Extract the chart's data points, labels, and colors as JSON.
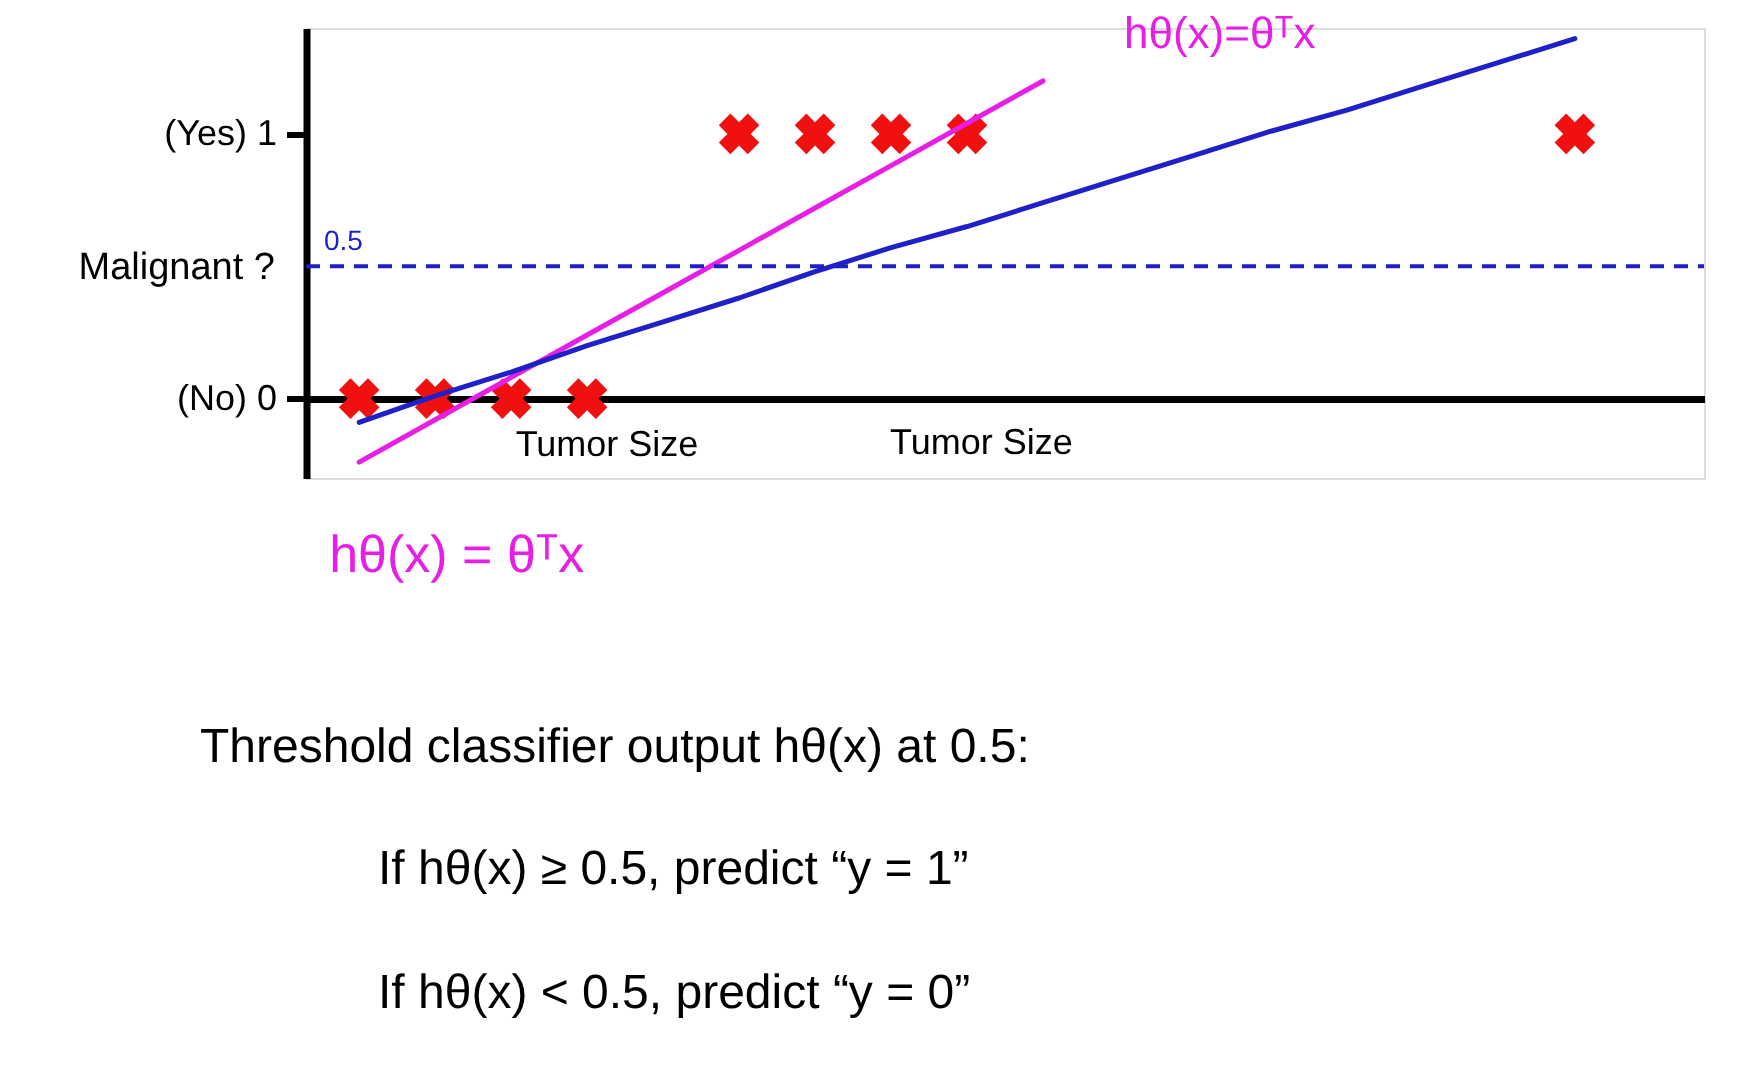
{
  "chart_data": {
    "type": "scatter",
    "xlabel": "Tumor Size",
    "ylabel": "Malignant ?",
    "categories": [
      null,
      null,
      null,
      null,
      null,
      null,
      null,
      null,
      null,
      null,
      null,
      null,
      null,
      null,
      null,
      null,
      null,
      null
    ],
    "ylim": [
      -0.3,
      1.4
    ],
    "yticks": [
      {
        "value": 0,
        "label": "(No) 0"
      },
      {
        "value": 1,
        "label": "(Yes) 1"
      }
    ],
    "tick_labels": "y",
    "series": [
      {
        "color": "#f01010",
        "marker": "cross",
        "values": [
          0,
          0,
          0,
          0,
          null,
          1,
          1,
          1,
          1,
          null,
          null,
          null,
          null,
          null,
          null,
          null,
          1,
          null
        ]
      },
      {
        "type": "line",
        "name": "hθ(x) = θᵀx",
        "color": "#e61ee6",
        "line_style": "solid",
        "values": [
          -0.24,
          -0.08,
          0.08,
          0.24,
          0.4,
          0.56,
          0.72,
          0.88,
          1.04,
          1.2,
          null,
          null,
          null,
          null,
          null,
          null,
          null,
          null
        ]
      },
      {
        "type": "line",
        "color": "#2020c8",
        "line_style": "solid",
        "values": [
          -0.09,
          0.01,
          0.1,
          0.2,
          0.29,
          0.38,
          0.48,
          0.57,
          0.65,
          0.74,
          0.83,
          0.92,
          1.01,
          1.09,
          1.18,
          1.27,
          1.36,
          null
        ]
      }
    ],
    "ref_lines": [
      {
        "axis": "y",
        "value": 0.5,
        "label": "0.5",
        "color": "#2020c8",
        "line_style": "dashed"
      }
    ],
    "annotations": [
      "hθ(x)=θᵀx",
      "Tumor Size",
      "Threshold classifier output hθ(x) at 0.5:",
      "If hθ(x) ≥ 0.5, predict “y = 1”",
      "If hθ(x) < 0.5, predict “y = 0”"
    ]
  }
}
